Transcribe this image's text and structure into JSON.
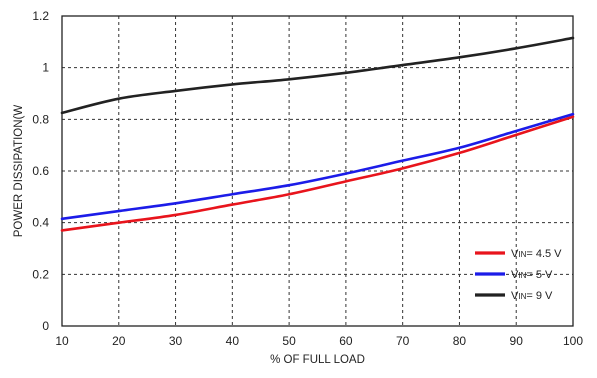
{
  "chart_data": {
    "type": "line",
    "xlabel": "% OF FULL LOAD",
    "ylabel": "POWER DISSIPATION(W",
    "xlim": [
      10,
      100
    ],
    "ylim": [
      0,
      1.2
    ],
    "xticks": [
      "10",
      "20",
      "30",
      "40",
      "50",
      "60",
      "70",
      "80",
      "90",
      "100"
    ],
    "yticks": [
      "0",
      "0.2",
      "0.4",
      "0.6",
      "0.8",
      "1",
      "1.2"
    ],
    "grid": true,
    "legend_position": "bottom-right",
    "x": [
      10,
      20,
      30,
      40,
      50,
      60,
      70,
      80,
      90,
      100
    ],
    "series": [
      {
        "legend_main": "V",
        "legend_sub": "IN",
        "legend_value": "= 4.5 V",
        "color": "#e8141c",
        "values": [
          0.37,
          0.4,
          0.43,
          0.47,
          0.51,
          0.56,
          0.61,
          0.67,
          0.74,
          0.81
        ]
      },
      {
        "legend_main": "V",
        "legend_sub": "IN",
        "legend_value": "= 5 V",
        "color": "#1c1ce8",
        "values": [
          0.415,
          0.445,
          0.475,
          0.51,
          0.545,
          0.59,
          0.64,
          0.69,
          0.755,
          0.82
        ]
      },
      {
        "legend_main": "V",
        "legend_sub": "IN",
        "legend_value": "= 9 V",
        "color": "#222222",
        "values": [
          0.825,
          0.88,
          0.91,
          0.935,
          0.955,
          0.98,
          1.01,
          1.04,
          1.075,
          1.115
        ]
      }
    ]
  }
}
